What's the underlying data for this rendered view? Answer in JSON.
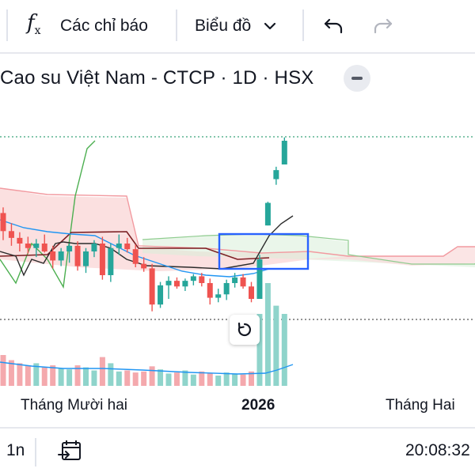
{
  "toolbar": {
    "indicators_label": "Các chỉ báo",
    "chart_type_label": "Biểu đồ",
    "icons": [
      "function-icon",
      "chevron-down-icon",
      "undo-icon",
      "redo-icon"
    ]
  },
  "symbol": {
    "title": "Cao su Việt Nam - CTCP · 1D · HSX"
  },
  "axis": {
    "labels": [
      "Tháng Mười hai",
      "2026",
      "Tháng Hai"
    ]
  },
  "bottom": {
    "range_label": "1n",
    "time": "20:08:32"
  },
  "colors": {
    "up": "#26a69a",
    "down": "#ef5350",
    "up_volume": "#8fd4cb",
    "down_volume": "#f4a9ad",
    "cloud_fill": "#fadada",
    "cloud_fill_green": "#d9efd9",
    "box": "#2962ff",
    "ma_line": "#2196f3"
  },
  "chart_data": {
    "type": "candlestick",
    "candles": [
      {
        "o": 0.69,
        "h": 0.74,
        "l": 0.45,
        "c": 0.53
      },
      {
        "o": 0.53,
        "h": 0.6,
        "l": 0.4,
        "c": 0.47
      },
      {
        "o": 0.47,
        "h": 0.52,
        "l": 0.35,
        "c": 0.42
      },
      {
        "o": 0.42,
        "h": 0.48,
        "l": 0.33,
        "c": 0.38
      },
      {
        "o": 0.38,
        "h": 0.46,
        "l": 0.3,
        "c": 0.42
      },
      {
        "o": 0.42,
        "h": 0.5,
        "l": 0.34,
        "c": 0.35
      },
      {
        "o": 0.35,
        "h": 0.4,
        "l": 0.2,
        "c": 0.27
      },
      {
        "o": 0.27,
        "h": 0.38,
        "l": 0.22,
        "c": 0.35
      },
      {
        "o": 0.35,
        "h": 0.42,
        "l": 0.25,
        "c": 0.4
      },
      {
        "o": 0.4,
        "h": 0.44,
        "l": 0.18,
        "c": 0.22
      },
      {
        "o": 0.22,
        "h": 0.38,
        "l": 0.16,
        "c": 0.35
      },
      {
        "o": 0.35,
        "h": 0.45,
        "l": 0.3,
        "c": 0.42
      },
      {
        "o": 0.42,
        "h": 0.48,
        "l": 0.1,
        "c": 0.14
      },
      {
        "o": 0.14,
        "h": 0.42,
        "l": 0.08,
        "c": 0.38
      },
      {
        "o": 0.38,
        "h": 0.5,
        "l": 0.32,
        "c": 0.42
      },
      {
        "o": 0.42,
        "h": 0.47,
        "l": 0.34,
        "c": 0.37
      },
      {
        "o": 0.37,
        "h": 0.41,
        "l": 0.21,
        "c": 0.24
      },
      {
        "o": 0.24,
        "h": 0.3,
        "l": 0.17,
        "c": 0.2
      },
      {
        "o": 0.2,
        "h": 0.24,
        "l": -0.18,
        "c": -0.12
      },
      {
        "o": -0.12,
        "h": 0.08,
        "l": -0.15,
        "c": 0.05
      },
      {
        "o": 0.05,
        "h": 0.13,
        "l": -0.07,
        "c": 0.09
      },
      {
        "o": 0.09,
        "h": 0.12,
        "l": 0.02,
        "c": 0.04
      },
      {
        "o": 0.04,
        "h": 0.11,
        "l": 0.0,
        "c": 0.09
      },
      {
        "o": 0.09,
        "h": 0.15,
        "l": 0.05,
        "c": 0.13
      },
      {
        "o": 0.13,
        "h": 0.16,
        "l": 0.04,
        "c": 0.07
      },
      {
        "o": 0.07,
        "h": 0.11,
        "l": -0.12,
        "c": -0.06
      },
      {
        "o": -0.06,
        "h": 0.02,
        "l": -0.1,
        "c": -0.03
      },
      {
        "o": -0.03,
        "h": 0.1,
        "l": -0.08,
        "c": 0.07
      },
      {
        "o": 0.07,
        "h": 0.16,
        "l": 0.03,
        "c": 0.12
      },
      {
        "o": 0.12,
        "h": 0.15,
        "l": 0.02,
        "c": 0.04
      },
      {
        "o": 0.04,
        "h": 0.08,
        "l": -0.1,
        "c": -0.07
      },
      {
        "o": -0.07,
        "h": 0.32,
        "l": -0.07,
        "c": 0.28
      },
      {
        "o": 0.58,
        "h": 0.79,
        "l": 0.58,
        "c": 0.78
      },
      {
        "o": 0.99,
        "h": 1.1,
        "l": 0.94,
        "c": 1.07
      },
      {
        "o": 1.12,
        "h": 1.36,
        "l": 1.12,
        "c": 1.33
      }
    ],
    "volume": [
      0.3,
      0.25,
      0.22,
      0.2,
      0.22,
      0.18,
      0.2,
      0.17,
      0.16,
      0.2,
      0.18,
      0.15,
      0.28,
      0.22,
      0.14,
      0.15,
      0.13,
      0.14,
      0.19,
      0.16,
      0.12,
      0.13,
      0.15,
      0.11,
      0.14,
      0.12,
      0.1,
      0.13,
      0.12,
      0.11,
      0.14,
      0.7,
      1.0,
      0.78,
      0.7
    ],
    "ylim": [
      -0.35,
      1.4
    ],
    "grid": false,
    "legend": "none"
  }
}
